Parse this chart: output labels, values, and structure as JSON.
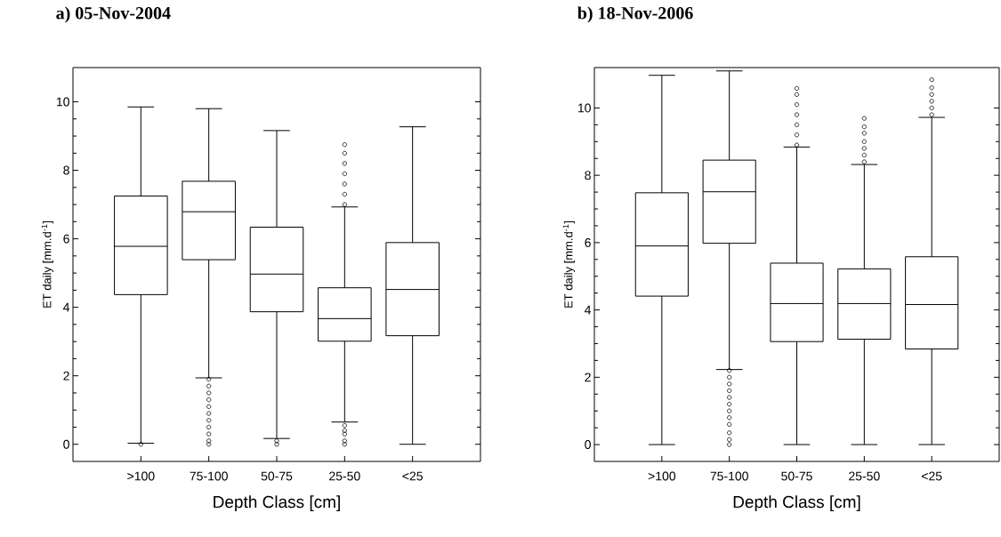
{
  "chart_data": [
    {
      "type": "box",
      "title": "a)  05-Nov-2004",
      "xlabel": "Depth Class [cm]",
      "ylabel": "ET daily [mm.d$^{-1}$]",
      "categories": [
        ">100",
        "75-100",
        "50-75",
        "25-50",
        "<25"
      ],
      "ylim": [
        -0.5,
        11
      ],
      "yticks": [
        0,
        2,
        4,
        6,
        8,
        10
      ],
      "marker": "circle",
      "boxes": [
        {
          "low": 0.03,
          "q1": 4.37,
          "median": 5.78,
          "q3": 7.25,
          "high": 9.85,
          "outliers": [
            0
          ]
        },
        {
          "low": 1.94,
          "q1": 5.39,
          "median": 6.79,
          "q3": 7.68,
          "high": 9.8,
          "outliers": [
            0,
            0.1,
            0.3,
            0.5,
            0.7,
            0.9,
            1.1,
            1.3,
            1.5,
            1.7,
            1.9
          ]
        },
        {
          "low": 0.17,
          "q1": 3.87,
          "median": 4.97,
          "q3": 6.34,
          "high": 9.16,
          "outliers": [
            0,
            0.1
          ]
        },
        {
          "low": 0.65,
          "q1": 3.01,
          "median": 3.67,
          "q3": 4.57,
          "high": 6.93,
          "outliers": [
            0,
            0.1,
            0.3,
            0.4,
            0.55,
            7.0,
            7.3,
            7.6,
            7.9,
            8.2,
            8.5,
            8.75
          ]
        },
        {
          "low": 0,
          "q1": 3.17,
          "median": 4.52,
          "q3": 5.89,
          "high": 9.27
        }
      ]
    },
    {
      "type": "box",
      "title": "b)  18-Nov-2006",
      "xlabel": "Depth Class [cm]",
      "ylabel": "ET daily [mm.d$^{-1}$]",
      "categories": [
        ">100",
        "75-100",
        "50-75",
        "25-50",
        "<25"
      ],
      "ylim": [
        -0.5,
        11.2
      ],
      "yticks": [
        0,
        2,
        4,
        6,
        8,
        10
      ],
      "marker": "circle",
      "boxes": [
        {
          "low": 0,
          "q1": 4.41,
          "median": 5.9,
          "q3": 7.48,
          "high": 10.97
        },
        {
          "low": 2.23,
          "q1": 5.98,
          "median": 7.51,
          "q3": 8.45,
          "high": 11.1,
          "outliers": [
            0,
            0.15,
            0.35,
            0.6,
            0.8,
            1.0,
            1.2,
            1.4,
            1.6,
            1.8,
            2.0,
            2.2
          ]
        },
        {
          "low": 0,
          "q1": 3.06,
          "median": 4.19,
          "q3": 5.39,
          "high": 8.84,
          "outliers": [
            8.9,
            9.2,
            9.5,
            9.8,
            10.1,
            10.4,
            10.58
          ]
        },
        {
          "low": 0,
          "q1": 3.13,
          "median": 4.19,
          "q3": 5.22,
          "high": 8.32,
          "outliers": [
            8.4,
            8.6,
            8.8,
            9.0,
            9.25,
            9.44,
            9.69
          ]
        },
        {
          "low": 0,
          "q1": 2.84,
          "median": 4.16,
          "q3": 5.58,
          "high": 9.72,
          "outliers": [
            9.8,
            10.0,
            10.2,
            10.4,
            10.6,
            10.84
          ]
        }
      ]
    }
  ]
}
